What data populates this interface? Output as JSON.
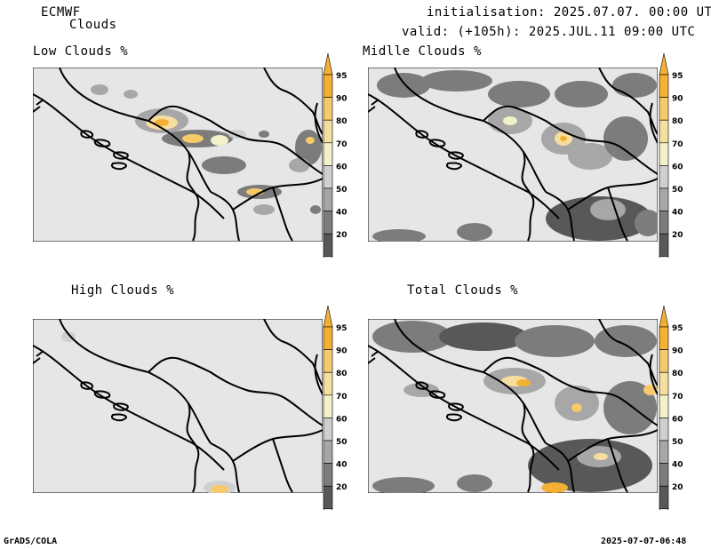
{
  "header": {
    "model": "ECMWF",
    "product": "Clouds",
    "init": "initialisation: 2025.07.07. 00:00 UTC",
    "valid": "valid: (+105h): 2025.JUL.11 09:00 UTC"
  },
  "panels": [
    {
      "title": "Low Clouds %"
    },
    {
      "title": "Midlle Clouds %"
    },
    {
      "title": "High Clouds %"
    },
    {
      "title": "Total Clouds %"
    }
  ],
  "legend": {
    "levels": [
      "95",
      "90",
      "80",
      "70",
      "60",
      "50",
      "40",
      "20"
    ],
    "colors": [
      "#f4b033",
      "#f6c96a",
      "#f6dea0",
      "#f2f1c8",
      "#cfcfcf",
      "#a7a7a7",
      "#7c7c7c",
      "#585858"
    ]
  },
  "footer": {
    "left": "GrADS/COLA",
    "right": "2025-07-07-06:48"
  },
  "colors": {
    "land": "#e6e6e6",
    "border": "#000000"
  }
}
